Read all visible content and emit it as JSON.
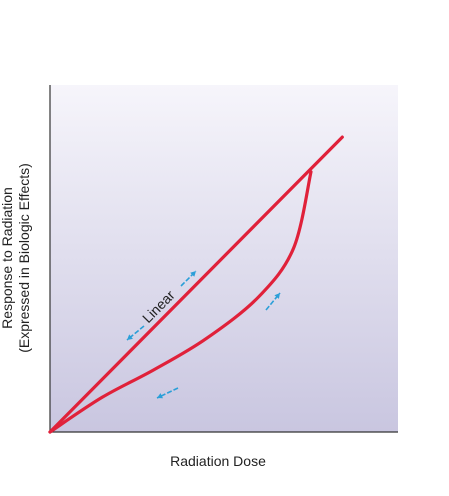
{
  "chart_data": {
    "type": "line",
    "title": "",
    "xlabel": "Radiation Dose",
    "ylabel_line1": "Response to Radiation",
    "ylabel_line2": "(Expressed in Biologic Effects)",
    "xlim": [
      0,
      1
    ],
    "ylim": [
      0,
      1
    ],
    "grid": false,
    "series": [
      {
        "name": "Linear",
        "color": "#e0213a",
        "x": [
          0,
          0.84
        ],
        "y": [
          0,
          0.85
        ]
      },
      {
        "name": "",
        "color": "#e0213a",
        "x": [
          0,
          0.15,
          0.3,
          0.45,
          0.6,
          0.7,
          0.75
        ],
        "y": [
          0,
          0.1,
          0.18,
          0.27,
          0.39,
          0.53,
          0.75
        ]
      }
    ],
    "annotation_color": "#2b9fd8",
    "background_gradient": [
      "#f6f5fb",
      "#c9c6e0"
    ]
  }
}
